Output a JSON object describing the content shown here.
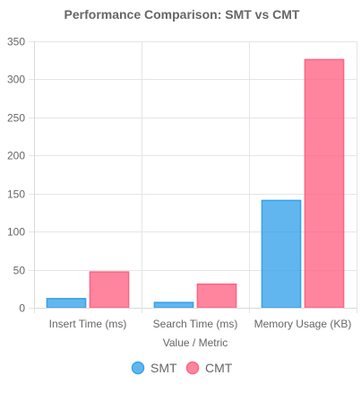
{
  "chart_data": {
    "type": "bar",
    "title": "Performance Comparison: SMT vs CMT",
    "xlabel": "Value / Metric",
    "ylabel": "",
    "categories": [
      "Insert Time (ms)",
      "Search Time (ms)",
      "Memory Usage (KB)"
    ],
    "series": [
      {
        "name": "SMT",
        "values": [
          12,
          7,
          141
        ],
        "color": "#36a2eb"
      },
      {
        "name": "CMT",
        "values": [
          47,
          31,
          326
        ],
        "color": "#ff6384"
      }
    ],
    "ylim": [
      0,
      350
    ],
    "yticks": [
      0,
      50,
      100,
      150,
      200,
      250,
      300,
      350
    ],
    "grid": true,
    "legend_position": "bottom"
  }
}
